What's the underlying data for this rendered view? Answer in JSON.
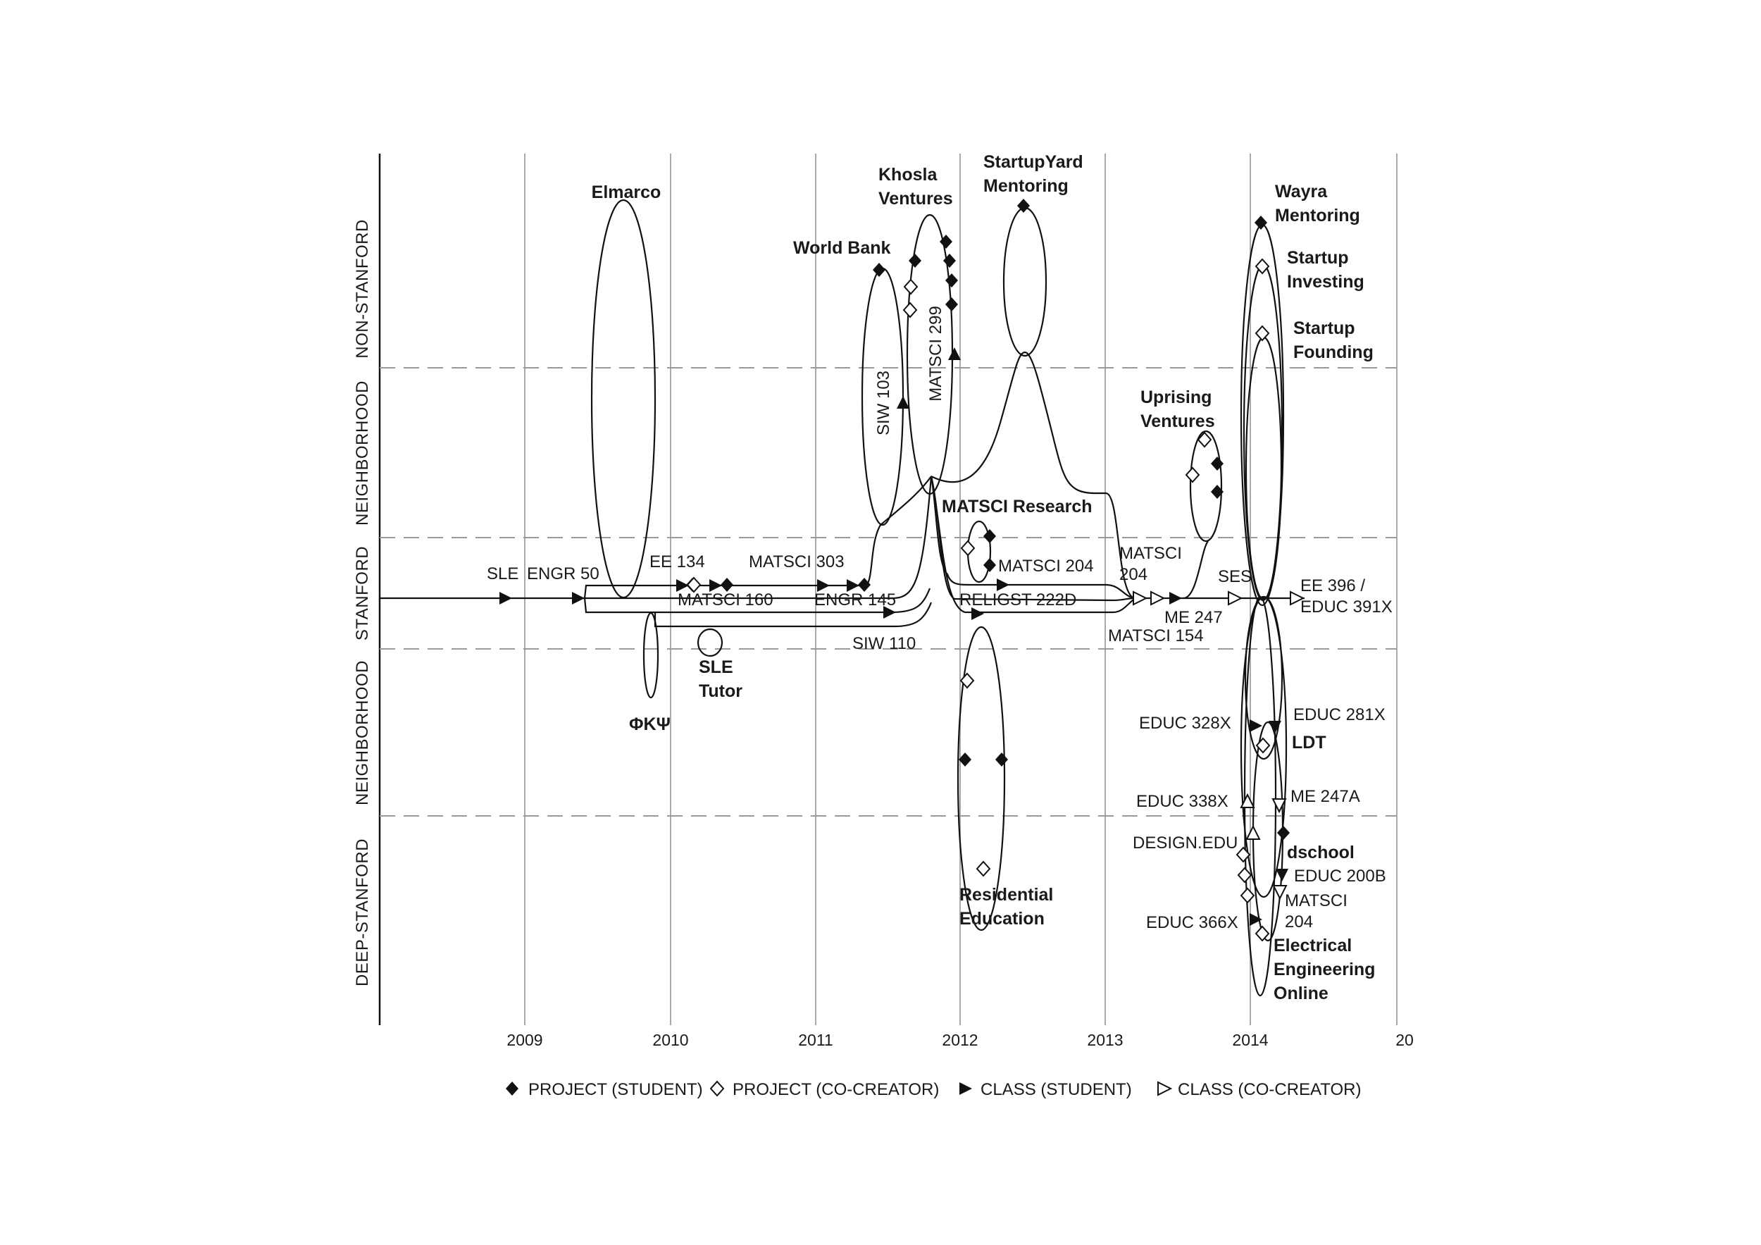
{
  "bands": [
    {
      "key": "non_stanford",
      "label": "NON-STANFORD"
    },
    {
      "key": "neighborhood_upper",
      "label": "NEIGHBORHOOD"
    },
    {
      "key": "stanford",
      "label": "STANFORD"
    },
    {
      "key": "neighborhood_lower",
      "label": "NEIGHBORHOOD"
    },
    {
      "key": "deep_stanford",
      "label": "DEEP-STANFORD"
    }
  ],
  "years": [
    "2009",
    "2010",
    "2011",
    "2012",
    "2013",
    "2014",
    "20"
  ],
  "legend": [
    {
      "key": "project_student",
      "label": "PROJECT (STUDENT)",
      "marker": "diamond-filled"
    },
    {
      "key": "project_cocreator",
      "label": "PROJECT (CO-CREATOR)",
      "marker": "diamond-open"
    },
    {
      "key": "class_student",
      "label": "CLASS (STUDENT)",
      "marker": "triangle-filled"
    },
    {
      "key": "class_cocreator",
      "label": "CLASS (CO-CREATOR)",
      "marker": "triangle-open"
    }
  ],
  "node_labels": {
    "elmarco": "Elmarco",
    "khosla": "Khosla\nVentures",
    "startupyard": "StartupYard\nMentoring",
    "world_bank": "World Bank",
    "wayra": "Wayra\nMentoring",
    "startup_investing": "Startup\nInvesting",
    "startup_founding": "Startup\nFounding",
    "uprising": "Uprising\nVentures",
    "matsci_research": "MATSCI Research",
    "sle_tutor": "SLE\nTutor",
    "phi_kappa_psi": "ΦΚΨ",
    "ldt": "LDT",
    "dschool": "dschool",
    "residential_education": "Residential\nEducation",
    "electrical_engineering_online": "Electrical\nEngineering\nOnline"
  },
  "class_labels": {
    "sle": "SLE",
    "engr50": "ENGR 50",
    "ee134": "EE 134",
    "matsci303": "MATSCI 303",
    "matsci160": "MATSCI 160",
    "engr145": "ENGR 145",
    "siw110": "SIW 110",
    "siw103": "SIW 103",
    "matsci299": "MATSCI 299",
    "matsci204_a": "MATSCI 204",
    "religst222d": "RELIGST 222D",
    "matsci204_b": "MATSCI\n204",
    "matsci154": "MATSCI 154",
    "me247": "ME 247",
    "ses": "SES",
    "ee396": "EE 396 /\nEDUC 391X",
    "educ328x": "EDUC 328X",
    "educ281x": "EDUC 281X",
    "educ338x": "EDUC 338X",
    "me247a": "ME 247A",
    "design_edu": "DESIGN.EDU",
    "educ200b": "EDUC 200B",
    "matsci204_c": "MATSCI\n204",
    "educ366x": "EDUC 366X"
  }
}
